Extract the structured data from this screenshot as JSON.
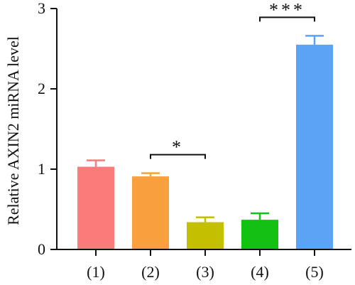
{
  "chart_data": {
    "type": "bar",
    "categories": [
      "(1)",
      "(2)",
      "(3)",
      "(4)",
      "(5)"
    ],
    "values": [
      1.03,
      0.91,
      0.34,
      0.37,
      2.55
    ],
    "errors": [
      0.08,
      0.04,
      0.06,
      0.08,
      0.11
    ],
    "colors": [
      "#fb7b7b",
      "#f7a03d",
      "#c3c002",
      "#13c113",
      "#5ba3f5"
    ],
    "title": "",
    "xlabel": "",
    "ylabel": "Relative AXIN2 miRNA level",
    "ylim": [
      0,
      3
    ],
    "yticks": [
      0,
      1,
      2,
      3
    ],
    "grid": false,
    "significance": [
      {
        "from": "(2)",
        "to": "(3)",
        "label": "*"
      },
      {
        "from": "(4)",
        "to": "(5)",
        "label": "***"
      }
    ]
  }
}
